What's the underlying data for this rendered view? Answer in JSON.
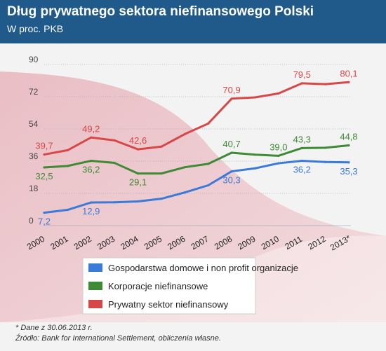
{
  "header": {
    "title": "Dług prywatnego sektora niefinansowego Polski",
    "subtitle": "W proc. PKB"
  },
  "footer": {
    "note": "* Dane z 30.06.2013 r.",
    "source": "Źródło: Bank for International Settlement, obliczenia własne."
  },
  "chart_data": {
    "type": "line",
    "title": "Dług prywatnego sektora niefinansowego Polski",
    "subtitle": "W proc. PKB",
    "x": [
      "2000",
      "2001",
      "2002",
      "2003",
      "2004",
      "2005",
      "2006",
      "2007",
      "2008",
      "2009",
      "2010",
      "2011",
      "2012",
      "2013*"
    ],
    "yticks": [
      0,
      18,
      36,
      54,
      72,
      90
    ],
    "ylim": [
      0,
      90
    ],
    "grid": true,
    "legend_position": "bottom",
    "series": [
      {
        "name": "Gospodarstwa domowe i non profit organizacje",
        "color": "#3a7ad9",
        "values": [
          7.2,
          8.8,
          12.9,
          13.0,
          13.5,
          15.0,
          18.5,
          22.5,
          30.3,
          32.0,
          34.8,
          36.2,
          35.5,
          35.3
        ],
        "labels": [
          {
            "i": 0,
            "text": "7,2",
            "pos": "below"
          },
          {
            "i": 2,
            "text": "12,9",
            "pos": "below"
          },
          {
            "i": 8,
            "text": "30,3",
            "pos": "below"
          },
          {
            "i": 11,
            "text": "36,2",
            "pos": "below"
          },
          {
            "i": 13,
            "text": "35,3",
            "pos": "below"
          }
        ]
      },
      {
        "name": "Korporacje niefinansowe",
        "color": "#3f8a35",
        "values": [
          32.5,
          33.3,
          36.2,
          35.0,
          29.1,
          29.1,
          32.6,
          34.5,
          40.7,
          39.6,
          39.0,
          43.3,
          43.5,
          44.8
        ],
        "labels": [
          {
            "i": 0,
            "text": "32,5",
            "pos": "below"
          },
          {
            "i": 2,
            "text": "36,2",
            "pos": "below"
          },
          {
            "i": 4,
            "text": "29,1",
            "pos": "below"
          },
          {
            "i": 8,
            "text": "40,7",
            "pos": "above"
          },
          {
            "i": 10,
            "text": "39,0",
            "pos": "above"
          },
          {
            "i": 11,
            "text": "43,3",
            "pos": "above"
          },
          {
            "i": 13,
            "text": "44,8",
            "pos": "above"
          }
        ]
      },
      {
        "name": "Prywatny sektor niefinansowy",
        "color": "#d84747",
        "values": [
          39.7,
          42.1,
          49.2,
          47.6,
          42.6,
          44.1,
          51.1,
          57.0,
          70.9,
          71.6,
          73.8,
          79.5,
          79.0,
          80.1
        ],
        "labels": [
          {
            "i": 0,
            "text": "39,7",
            "pos": "above"
          },
          {
            "i": 2,
            "text": "49,2",
            "pos": "above"
          },
          {
            "i": 4,
            "text": "42,6",
            "pos": "above"
          },
          {
            "i": 8,
            "text": "70,9",
            "pos": "above"
          },
          {
            "i": 11,
            "text": "79,5",
            "pos": "above"
          },
          {
            "i": 13,
            "text": "80,1",
            "pos": "above"
          }
        ]
      }
    ]
  }
}
